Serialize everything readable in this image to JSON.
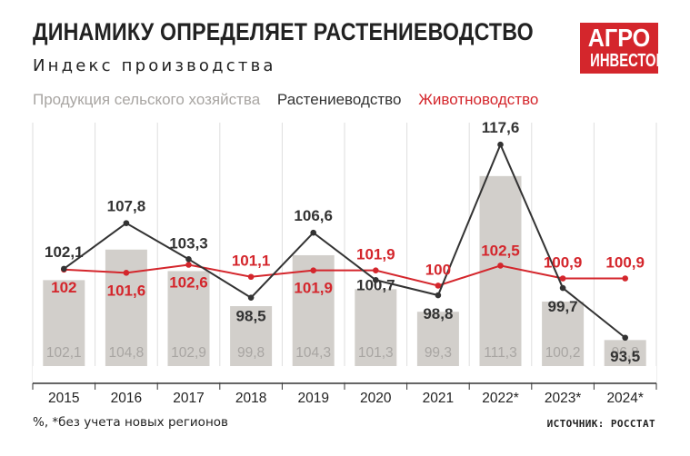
{
  "title": "ДИНАМИКУ ОПРЕДЕЛЯЕТ РАСТЕНИЕВОДСТВО",
  "subtitle": "Индекс производства",
  "logo": {
    "line1": "АГРО",
    "line2": "ИНВЕСТОР"
  },
  "footnote": "%, *без учета новых регионов",
  "source": "ИСТОЧНИК: РОССТАТ",
  "colors": {
    "bars": "#d2cfcb",
    "crop_line": "#333333",
    "livestock_line": "#d4262c",
    "grid": "#dedede"
  },
  "chart_data": {
    "type": "bar",
    "categories": [
      "2015",
      "2016",
      "2017",
      "2018",
      "2019",
      "2020",
      "2021",
      "2022*",
      "2023*",
      "2024*"
    ],
    "series": [
      {
        "name": "Продукция сельского хозяйства",
        "type": "bar",
        "color": "#d2cfcb",
        "label_color": "#a8a5a2",
        "values": [
          102.1,
          104.8,
          102.9,
          99.8,
          104.3,
          101.3,
          99.3,
          111.3,
          100.2,
          96.8
        ],
        "labels": [
          "102,1",
          "104,8",
          "102,9",
          "99,8",
          "104,3",
          "101,3",
          "99,3",
          "111,3",
          "100,2",
          "96,8"
        ]
      },
      {
        "name": "Растениеводство",
        "type": "line",
        "color": "#333333",
        "label_color": "#333333",
        "values": [
          102.1,
          107.8,
          103.3,
          98.5,
          106.6,
          100.7,
          98.8,
          117.6,
          99.7,
          93.5
        ],
        "labels": [
          "102,1",
          "107,8",
          "103,3",
          "98,5",
          "106,6",
          "100,7",
          "98,8",
          "117,6",
          "99,7",
          "93,5"
        ]
      },
      {
        "name": "Животноводство",
        "type": "line",
        "color": "#d4262c",
        "label_color": "#d4262c",
        "values": [
          102,
          101.6,
          102.6,
          101.1,
          101.9,
          101.9,
          100,
          102.5,
          100.9,
          100.9
        ],
        "labels": [
          "102",
          "101,6",
          "102,6",
          "101,1",
          "101,9",
          "101,9",
          "100",
          "102,5",
          "100,9",
          "100,9"
        ]
      }
    ],
    "grid": true,
    "legend_position": "top-left"
  }
}
